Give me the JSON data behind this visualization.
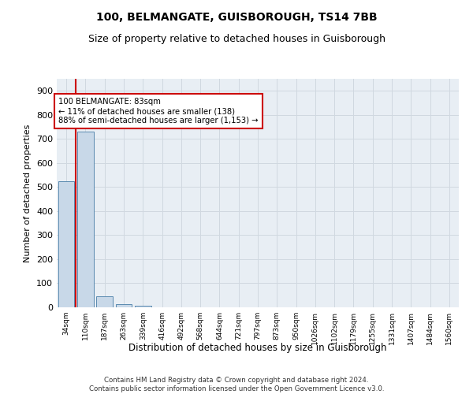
{
  "title": "100, BELMANGATE, GUISBOROUGH, TS14 7BB",
  "subtitle": "Size of property relative to detached houses in Guisborough",
  "xlabel": "Distribution of detached houses by size in Guisborough",
  "ylabel": "Number of detached properties",
  "categories": [
    "34sqm",
    "110sqm",
    "187sqm",
    "263sqm",
    "339sqm",
    "416sqm",
    "492sqm",
    "568sqm",
    "644sqm",
    "721sqm",
    "797sqm",
    "873sqm",
    "950sqm",
    "1026sqm",
    "1102sqm",
    "1179sqm",
    "1255sqm",
    "1331sqm",
    "1407sqm",
    "1484sqm",
    "1560sqm"
  ],
  "values": [
    525,
    730,
    47,
    13,
    8,
    0,
    0,
    0,
    0,
    0,
    0,
    0,
    0,
    0,
    0,
    0,
    0,
    0,
    0,
    0,
    0
  ],
  "bar_color": "#c8d8e8",
  "bar_edge_color": "#5a8ab0",
  "ylim": [
    0,
    950
  ],
  "yticks": [
    0,
    100,
    200,
    300,
    400,
    500,
    600,
    700,
    800,
    900
  ],
  "property_line_x": 0.5,
  "property_line_color": "#cc0000",
  "annotation_text": "100 BELMANGATE: 83sqm\n← 11% of detached houses are smaller (138)\n88% of semi-detached houses are larger (1,153) →",
  "annotation_box_color": "#cc0000",
  "ax_facecolor": "#e8eef4",
  "grid_color": "#d0d8e0",
  "background_color": "#ffffff",
  "footer_line1": "Contains HM Land Registry data © Crown copyright and database right 2024.",
  "footer_line2": "Contains public sector information licensed under the Open Government Licence v3.0."
}
